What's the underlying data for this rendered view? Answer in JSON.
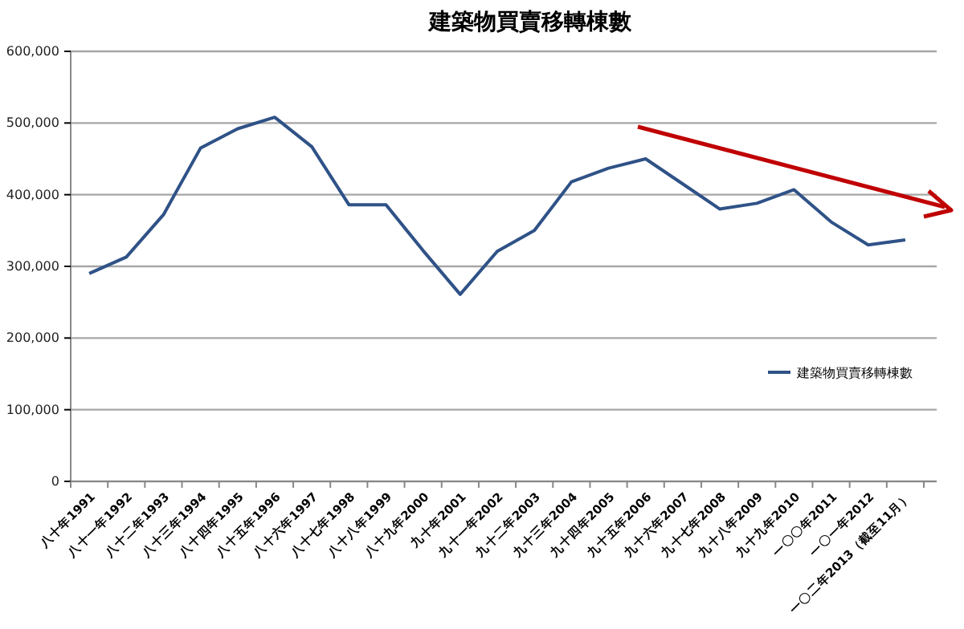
{
  "chart_data": {
    "type": "line",
    "title": "建築物買賣移轉棟數",
    "categories": [
      "八十年1991",
      "八十一年1992",
      "八十二年1993",
      "八十三年1994",
      "八十四年1995",
      "八十五年1996",
      "八十六年1997",
      "八十七年1998",
      "八十八年1999",
      "八十九年2000",
      "九十年2001",
      "九十一年2002",
      "九十二年2003",
      "九十三年2004",
      "九十四年2005",
      "九十五年2006",
      "九十六年2007",
      "九十七年2008",
      "九十八年2009",
      "九十九年2010",
      "一〇〇年2011",
      "一〇一年2012",
      "一〇二年2013（截至11月）"
    ],
    "series": [
      {
        "name": "建築物買賣移轉棟數",
        "color": "#2f5287",
        "values": [
          290000,
          313000,
          372000,
          465000,
          492000,
          508000,
          467000,
          386000,
          386000,
          322000,
          261000,
          321000,
          350000,
          418000,
          437000,
          450000,
          415000,
          380000,
          388000,
          407000,
          362000,
          330000,
          337000
        ]
      }
    ],
    "ylim": [
      0,
      600000
    ],
    "yticks": [
      {
        "value": 0,
        "label": "0"
      },
      {
        "value": 100000,
        "label": "100,000"
      },
      {
        "value": 200000,
        "label": "200,000"
      },
      {
        "value": 300000,
        "label": "300,000"
      },
      {
        "value": 400000,
        "label": "400,000"
      },
      {
        "value": 500000,
        "label": "500,000"
      },
      {
        "value": 600000,
        "label": "600,000"
      }
    ],
    "grid": "y",
    "legend": "right",
    "marker": "none",
    "line_style": "solid"
  }
}
